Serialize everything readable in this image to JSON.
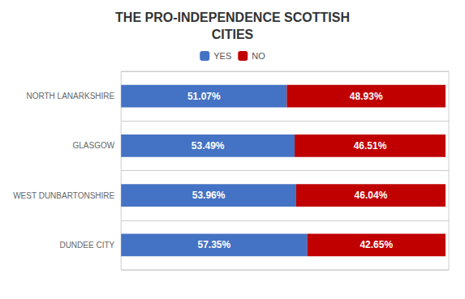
{
  "chart_data": {
    "type": "bar",
    "title": "THE PRO-INDEPENDENCE SCOTTISH\nCITIES",
    "orientation": "horizontal",
    "stacked": true,
    "categories": [
      "NORTH LANARKSHIRE",
      "GLASGOW",
      "WEST DUNBARTONSHIRE",
      "DUNDEE CITY"
    ],
    "series": [
      {
        "name": "YES",
        "color": "#4472C4",
        "values": [
          51.07,
          53.49,
          53.96,
          57.35
        ],
        "value_labels": [
          "51.07%",
          "53.49%",
          "53.96%",
          "57.35%"
        ]
      },
      {
        "name": "NO",
        "color": "#C00000",
        "values": [
          48.93,
          46.51,
          46.04,
          42.65
        ],
        "value_labels": [
          "48.93%",
          "46.51%",
          "46.04%",
          "42.65%"
        ]
      }
    ],
    "xlim": [
      0,
      101
    ],
    "data_labels": true,
    "tick_labels": "y",
    "grid": true,
    "legend": "top"
  }
}
